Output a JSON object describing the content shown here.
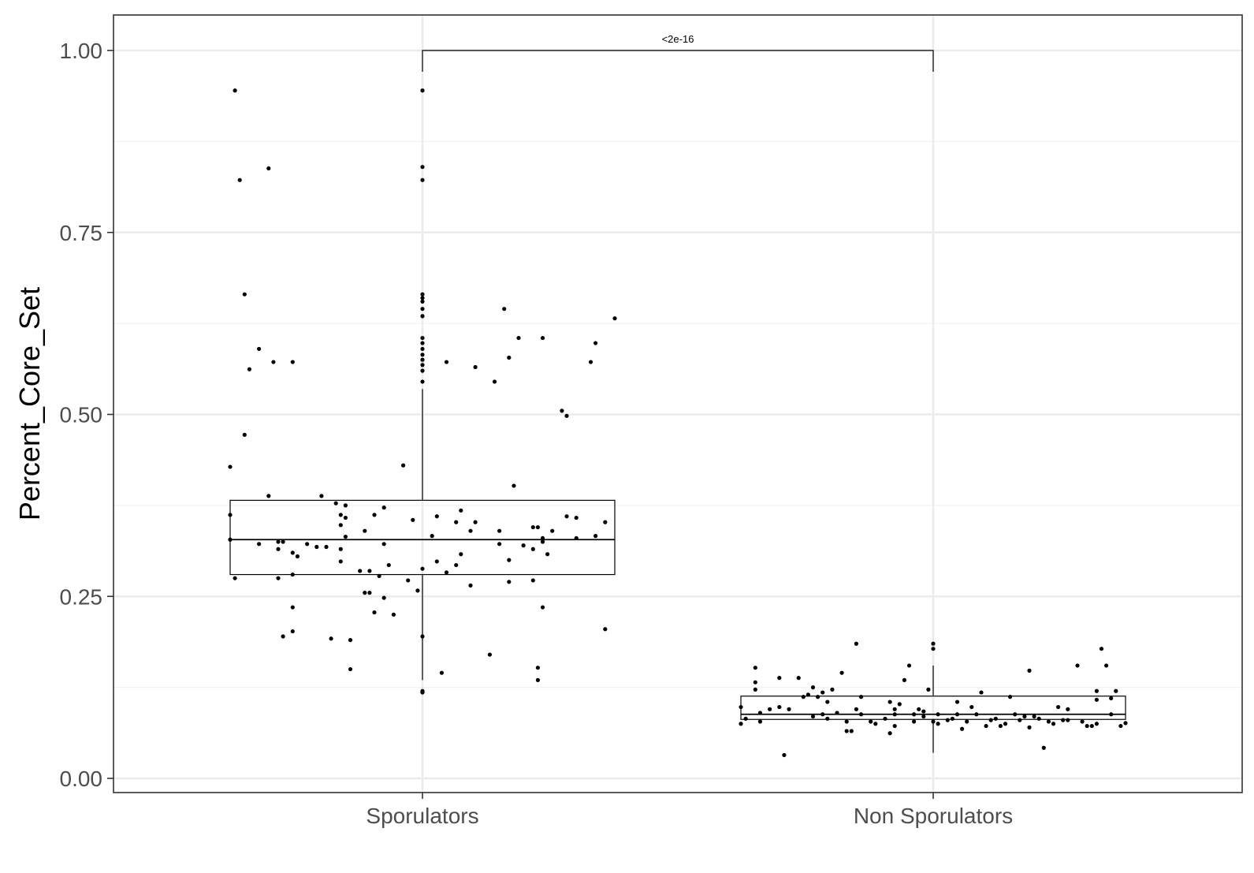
{
  "chart_data": {
    "type": "boxplot",
    "title": "",
    "xlabel": "",
    "ylabel": "Percent_Core_Set",
    "ylim": [
      -0.025,
      1.05
    ],
    "y_ticks": [
      {
        "value": 0.0,
        "label": "0.00"
      },
      {
        "value": 0.25,
        "label": "0.25"
      },
      {
        "value": 0.5,
        "label": "0.50"
      },
      {
        "value": 0.75,
        "label": "0.75"
      },
      {
        "value": 1.0,
        "label": "1.00"
      }
    ],
    "y_minor_ticks": [
      0.125,
      0.375,
      0.625,
      0.875
    ],
    "grid": true,
    "categories": [
      "Sporulators",
      "Non Sporulators"
    ],
    "boxes": [
      {
        "category": "Sporulators",
        "q1": 0.28,
        "median": 0.328,
        "q3": 0.382,
        "whisker_low": 0.135,
        "whisker_high": 0.535
      },
      {
        "category": "Non Sporulators",
        "q1": 0.081,
        "median": 0.088,
        "q3": 0.113,
        "whisker_low": 0.035,
        "whisker_high": 0.155
      }
    ],
    "outliers": [
      {
        "category": "Sporulators",
        "values": [
          0.945,
          0.84,
          0.822,
          0.665,
          0.66,
          0.655,
          0.645,
          0.635,
          0.605,
          0.598,
          0.59,
          0.582,
          0.575,
          0.568,
          0.56,
          0.545,
          0.12,
          0.118
        ]
      },
      {
        "category": "Non Sporulators",
        "values": [
          0.185,
          0.178
        ]
      }
    ],
    "jitter_points": [
      {
        "category": "Sporulators",
        "points": [
          [
            -0.39,
            0.945
          ],
          [
            -0.38,
            0.822
          ],
          [
            -0.32,
            0.838
          ],
          [
            -0.37,
            0.665
          ],
          [
            -0.34,
            0.59
          ],
          [
            -0.36,
            0.562
          ],
          [
            -0.31,
            0.572
          ],
          [
            -0.27,
            0.572
          ],
          [
            -0.37,
            0.472
          ],
          [
            -0.4,
            0.428
          ],
          [
            -0.4,
            0.362
          ],
          [
            -0.4,
            0.328
          ],
          [
            -0.39,
            0.275
          ],
          [
            -0.34,
            0.322
          ],
          [
            -0.32,
            0.388
          ],
          [
            -0.3,
            0.325
          ],
          [
            -0.3,
            0.315
          ],
          [
            -0.29,
            0.325
          ],
          [
            -0.3,
            0.275
          ],
          [
            -0.29,
            0.195
          ],
          [
            -0.27,
            0.31
          ],
          [
            -0.27,
            0.28
          ],
          [
            -0.27,
            0.235
          ],
          [
            -0.27,
            0.202
          ],
          [
            -0.26,
            0.305
          ],
          [
            -0.24,
            0.322
          ],
          [
            -0.22,
            0.318
          ],
          [
            -0.21,
            0.388
          ],
          [
            -0.2,
            0.318
          ],
          [
            -0.19,
            0.192
          ],
          [
            -0.18,
            0.378
          ],
          [
            -0.17,
            0.362
          ],
          [
            -0.17,
            0.348
          ],
          [
            -0.17,
            0.315
          ],
          [
            -0.17,
            0.298
          ],
          [
            -0.16,
            0.375
          ],
          [
            -0.16,
            0.358
          ],
          [
            -0.16,
            0.332
          ],
          [
            -0.15,
            0.19
          ],
          [
            -0.15,
            0.15
          ],
          [
            -0.13,
            0.285
          ],
          [
            -0.12,
            0.255
          ],
          [
            -0.12,
            0.34
          ],
          [
            -0.11,
            0.255
          ],
          [
            -0.11,
            0.285
          ],
          [
            -0.1,
            0.362
          ],
          [
            -0.1,
            0.228
          ],
          [
            -0.09,
            0.278
          ],
          [
            -0.08,
            0.248
          ],
          [
            -0.08,
            0.322
          ],
          [
            -0.08,
            0.372
          ],
          [
            -0.07,
            0.293
          ],
          [
            -0.06,
            0.225
          ],
          [
            -0.04,
            0.43
          ],
          [
            -0.03,
            0.272
          ],
          [
            -0.02,
            0.355
          ],
          [
            -0.01,
            0.258
          ],
          [
            0.0,
            0.195
          ],
          [
            0.0,
            0.288
          ],
          [
            0.02,
            0.333
          ],
          [
            0.03,
            0.298
          ],
          [
            0.03,
            0.36
          ],
          [
            0.04,
            0.145
          ],
          [
            0.05,
            0.572
          ],
          [
            0.05,
            0.283
          ],
          [
            0.07,
            0.352
          ],
          [
            0.07,
            0.293
          ],
          [
            0.08,
            0.308
          ],
          [
            0.08,
            0.368
          ],
          [
            0.1,
            0.265
          ],
          [
            0.1,
            0.34
          ],
          [
            0.11,
            0.565
          ],
          [
            0.11,
            0.352
          ],
          [
            0.14,
            0.17
          ],
          [
            0.15,
            0.545
          ],
          [
            0.16,
            0.322
          ],
          [
            0.16,
            0.34
          ],
          [
            0.17,
            0.645
          ],
          [
            0.18,
            0.578
          ],
          [
            0.18,
            0.27
          ],
          [
            0.18,
            0.3
          ],
          [
            0.19,
            0.402
          ],
          [
            0.2,
            0.605
          ],
          [
            0.21,
            0.32
          ],
          [
            0.23,
            0.345
          ],
          [
            0.23,
            0.272
          ],
          [
            0.23,
            0.315
          ],
          [
            0.24,
            0.152
          ],
          [
            0.24,
            0.135
          ],
          [
            0.24,
            0.345
          ],
          [
            0.25,
            0.33
          ],
          [
            0.25,
            0.325
          ],
          [
            0.25,
            0.235
          ],
          [
            0.25,
            0.605
          ],
          [
            0.26,
            0.308
          ],
          [
            0.27,
            0.34
          ],
          [
            0.29,
            0.505
          ],
          [
            0.3,
            0.498
          ],
          [
            0.3,
            0.36
          ],
          [
            0.32,
            0.33
          ],
          [
            0.32,
            0.358
          ],
          [
            0.35,
            0.572
          ],
          [
            0.36,
            0.598
          ],
          [
            0.38,
            0.352
          ],
          [
            0.38,
            0.205
          ],
          [
            0.36,
            0.333
          ],
          [
            0.4,
            0.632
          ]
        ]
      },
      {
        "category": "Non Sporulators",
        "points": [
          [
            -0.4,
            0.075
          ],
          [
            -0.4,
            0.098
          ],
          [
            -0.39,
            0.082
          ],
          [
            -0.37,
            0.152
          ],
          [
            -0.37,
            0.132
          ],
          [
            -0.37,
            0.122
          ],
          [
            -0.36,
            0.078
          ],
          [
            -0.36,
            0.09
          ],
          [
            -0.34,
            0.095
          ],
          [
            -0.32,
            0.098
          ],
          [
            -0.32,
            0.138
          ],
          [
            -0.31,
            0.032
          ],
          [
            -0.3,
            0.095
          ],
          [
            -0.28,
            0.138
          ],
          [
            -0.27,
            0.112
          ],
          [
            -0.26,
            0.115
          ],
          [
            -0.25,
            0.125
          ],
          [
            -0.25,
            0.085
          ],
          [
            -0.24,
            0.112
          ],
          [
            -0.23,
            0.088
          ],
          [
            -0.23,
            0.118
          ],
          [
            -0.22,
            0.082
          ],
          [
            -0.22,
            0.105
          ],
          [
            -0.21,
            0.122
          ],
          [
            -0.2,
            0.09
          ],
          [
            -0.19,
            0.145
          ],
          [
            -0.18,
            0.065
          ],
          [
            -0.18,
            0.078
          ],
          [
            -0.17,
            0.065
          ],
          [
            -0.16,
            0.185
          ],
          [
            -0.16,
            0.095
          ],
          [
            -0.15,
            0.112
          ],
          [
            -0.15,
            0.088
          ],
          [
            -0.13,
            0.078
          ],
          [
            -0.12,
            0.075
          ],
          [
            -0.1,
            0.082
          ],
          [
            -0.09,
            0.062
          ],
          [
            -0.09,
            0.105
          ],
          [
            -0.08,
            0.095
          ],
          [
            -0.08,
            0.088
          ],
          [
            -0.08,
            0.072
          ],
          [
            -0.07,
            0.102
          ],
          [
            -0.06,
            0.135
          ],
          [
            -0.05,
            0.155
          ],
          [
            -0.04,
            0.088
          ],
          [
            -0.04,
            0.078
          ],
          [
            -0.03,
            0.095
          ],
          [
            -0.02,
            0.085
          ],
          [
            -0.02,
            0.092
          ],
          [
            -0.01,
            0.122
          ],
          [
            0.0,
            0.078
          ],
          [
            0.01,
            0.088
          ],
          [
            0.01,
            0.075
          ],
          [
            0.03,
            0.08
          ],
          [
            0.04,
            0.082
          ],
          [
            0.05,
            0.105
          ],
          [
            0.05,
            0.088
          ],
          [
            0.06,
            0.068
          ],
          [
            0.07,
            0.078
          ],
          [
            0.08,
            0.098
          ],
          [
            0.09,
            0.088
          ],
          [
            0.1,
            0.118
          ],
          [
            0.11,
            0.072
          ],
          [
            0.12,
            0.08
          ],
          [
            0.13,
            0.082
          ],
          [
            0.14,
            0.072
          ],
          [
            0.15,
            0.075
          ],
          [
            0.16,
            0.112
          ],
          [
            0.17,
            0.088
          ],
          [
            0.18,
            0.08
          ],
          [
            0.19,
            0.085
          ],
          [
            0.2,
            0.148
          ],
          [
            0.2,
            0.07
          ],
          [
            0.21,
            0.085
          ],
          [
            0.22,
            0.082
          ],
          [
            0.23,
            0.042
          ],
          [
            0.24,
            0.078
          ],
          [
            0.25,
            0.075
          ],
          [
            0.26,
            0.098
          ],
          [
            0.27,
            0.08
          ],
          [
            0.28,
            0.095
          ],
          [
            0.28,
            0.08
          ],
          [
            0.3,
            0.155
          ],
          [
            0.31,
            0.078
          ],
          [
            0.32,
            0.072
          ],
          [
            0.33,
            0.072
          ],
          [
            0.34,
            0.108
          ],
          [
            0.34,
            0.12
          ],
          [
            0.34,
            0.075
          ],
          [
            0.35,
            0.178
          ],
          [
            0.36,
            0.155
          ],
          [
            0.37,
            0.11
          ],
          [
            0.37,
            0.088
          ],
          [
            0.38,
            0.12
          ],
          [
            0.39,
            0.072
          ],
          [
            0.4,
            0.076
          ]
        ]
      }
    ],
    "comparison": {
      "from": "Sporulators",
      "to": "Non Sporulators",
      "label": "<2e-16",
      "y": 1.0
    }
  }
}
